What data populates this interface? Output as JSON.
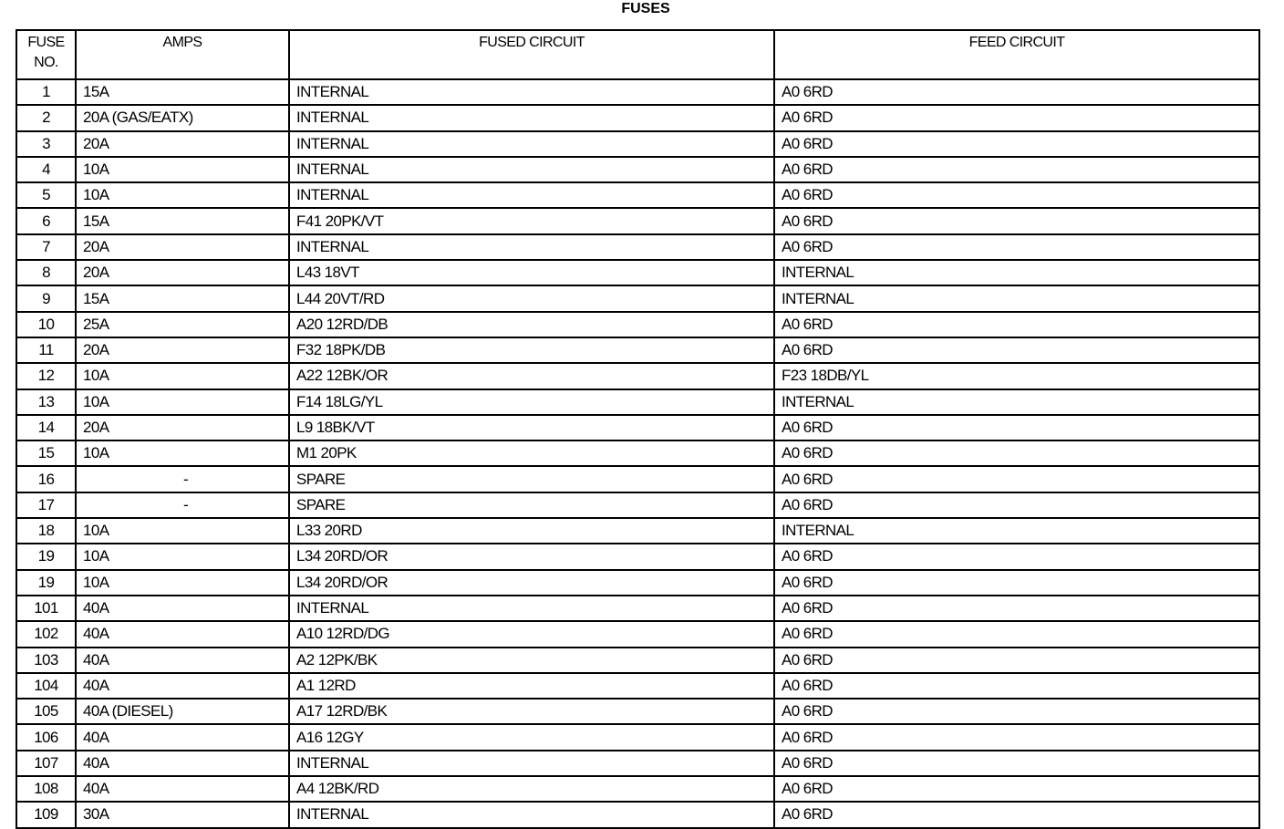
{
  "title": "FUSES",
  "columns": [
    "FUSE NO.",
    "AMPS",
    "FUSED CIRCUIT",
    "FEED CIRCUIT"
  ],
  "header_no_line1": "FUSE",
  "header_no_line2": "NO.",
  "rows": [
    {
      "no": "1",
      "amps": "15A",
      "fused": "INTERNAL",
      "feed": "A0 6RD"
    },
    {
      "no": "2",
      "amps": "20A (GAS/EATX)",
      "fused": "INTERNAL",
      "feed": "A0 6RD"
    },
    {
      "no": "3",
      "amps": "20A",
      "fused": "INTERNAL",
      "feed": "A0 6RD"
    },
    {
      "no": "4",
      "amps": "10A",
      "fused": "INTERNAL",
      "feed": "A0 6RD"
    },
    {
      "no": "5",
      "amps": "10A",
      "fused": "INTERNAL",
      "feed": "A0 6RD"
    },
    {
      "no": "6",
      "amps": "15A",
      "fused": "F41 20PK/VT",
      "feed": "A0 6RD"
    },
    {
      "no": "7",
      "amps": "20A",
      "fused": "INTERNAL",
      "feed": "A0 6RD"
    },
    {
      "no": "8",
      "amps": "20A",
      "fused": "L43 18VT",
      "feed": "INTERNAL"
    },
    {
      "no": "9",
      "amps": "15A",
      "fused": "L44 20VT/RD",
      "feed": "INTERNAL"
    },
    {
      "no": "10",
      "amps": "25A",
      "fused": "A20 12RD/DB",
      "feed": "A0 6RD"
    },
    {
      "no": "11",
      "amps": "20A",
      "fused": "F32 18PK/DB",
      "feed": "A0 6RD"
    },
    {
      "no": "12",
      "amps": "10A",
      "fused": "A22 12BK/OR",
      "feed": "F23 18DB/YL"
    },
    {
      "no": "13",
      "amps": "10A",
      "fused": "F14 18LG/YL",
      "feed": "INTERNAL"
    },
    {
      "no": "14",
      "amps": "20A",
      "fused": "L9 18BK/VT",
      "feed": "A0 6RD"
    },
    {
      "no": "15",
      "amps": "10A",
      "fused": "M1 20PK",
      "feed": "A0 6RD"
    },
    {
      "no": "16",
      "amps": "-",
      "fused": "SPARE",
      "feed": "A0 6RD"
    },
    {
      "no": "17",
      "amps": "-",
      "fused": "SPARE",
      "feed": "A0 6RD"
    },
    {
      "no": "18",
      "amps": "10A",
      "fused": "L33 20RD",
      "feed": "INTERNAL"
    },
    {
      "no": "19",
      "amps": "10A",
      "fused": "L34 20RD/OR",
      "feed": "A0 6RD"
    },
    {
      "no": "19",
      "amps": "10A",
      "fused": "L34 20RD/OR",
      "feed": "A0 6RD"
    },
    {
      "no": "101",
      "amps": "40A",
      "fused": "INTERNAL",
      "feed": "A0 6RD"
    },
    {
      "no": "102",
      "amps": "40A",
      "fused": "A10 12RD/DG",
      "feed": "A0 6RD"
    },
    {
      "no": "103",
      "amps": "40A",
      "fused": "A2 12PK/BK",
      "feed": "A0 6RD"
    },
    {
      "no": "104",
      "amps": "40A",
      "fused": "A1 12RD",
      "feed": "A0 6RD"
    },
    {
      "no": "105",
      "amps": "40A (DIESEL)",
      "fused": "A17 12RD/BK",
      "feed": "A0 6RD"
    },
    {
      "no": "106",
      "amps": "40A",
      "fused": "A16 12GY",
      "feed": "A0 6RD"
    },
    {
      "no": "107",
      "amps": "40A",
      "fused": "INTERNAL",
      "feed": "A0 6RD"
    },
    {
      "no": "108",
      "amps": "40A",
      "fused": "A4 12BK/RD",
      "feed": "A0 6RD"
    },
    {
      "no": "109",
      "amps": "30A",
      "fused": "INTERNAL",
      "feed": "A0 6RD"
    }
  ]
}
